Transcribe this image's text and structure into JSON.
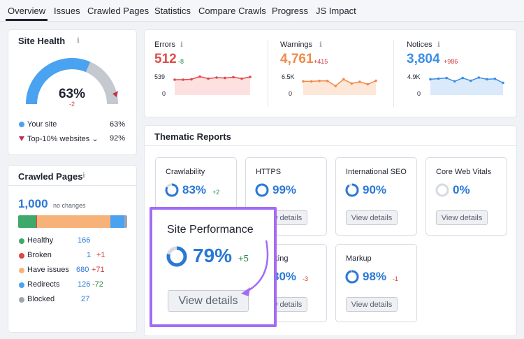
{
  "tabs": [
    "Overview",
    "Issues",
    "Crawled Pages",
    "Statistics",
    "Compare Crawls",
    "Progress",
    "JS Impact"
  ],
  "site_health": {
    "title": "Site Health",
    "percent": 63,
    "percent_label": "63%",
    "delta": "-2",
    "legend": [
      {
        "label": "Your site",
        "value": "63%",
        "color": "#4aa3f0"
      },
      {
        "label": "Top-10% websites",
        "value": "92%",
        "color": "#c0334d"
      }
    ],
    "colors": {
      "primary": "#4aa3f0",
      "secondary": "#c4c8cf"
    }
  },
  "crawled_pages": {
    "title": "Crawled Pages",
    "total": "1,000",
    "total_note": "no changes",
    "bar_fractions": [
      0.166,
      0.001,
      0.68,
      0.126,
      0.027
    ],
    "rows": [
      {
        "label": "Healthy",
        "value": "166",
        "delta": "",
        "color": "#3ea96a"
      },
      {
        "label": "Broken",
        "value": "1",
        "delta": "+1",
        "color": "#e04545"
      },
      {
        "label": "Have issues",
        "value": "680",
        "delta": "+71",
        "color": "#f7b27a"
      },
      {
        "label": "Redirects",
        "value": "126",
        "delta": "-72",
        "color": "#4aa3f0"
      },
      {
        "label": "Blocked",
        "value": "27",
        "delta": "",
        "color": "#a0a6b1"
      }
    ]
  },
  "metrics": [
    {
      "label": "Errors",
      "value": "512",
      "delta": "-8",
      "ymax": "539",
      "ymin": "0",
      "color": "#e04c4c",
      "fill": "#fde0e0",
      "series": [
        0.8,
        0.8,
        0.82,
        0.95,
        0.85,
        0.9,
        0.88,
        0.92,
        0.85,
        0.93
      ]
    },
    {
      "label": "Warnings",
      "value": "4,761",
      "delta": "+415",
      "ymax": "6.5K",
      "ymin": "0",
      "color": "#f08a4b",
      "fill": "#fde7d8",
      "series": [
        0.72,
        0.72,
        0.74,
        0.74,
        0.5,
        0.82,
        0.62,
        0.7,
        0.58,
        0.75
      ]
    },
    {
      "label": "Notices",
      "value": "3,804",
      "delta": "+986",
      "ymax": "4.9K",
      "ymin": "0",
      "color": "#3b8ee6",
      "fill": "#dbeafb",
      "series": [
        0.82,
        0.85,
        0.88,
        0.72,
        0.88,
        0.75,
        0.9,
        0.82,
        0.84,
        0.65
      ]
    }
  ],
  "thematic": {
    "title": "Thematic Reports",
    "button_label": "View details",
    "cards": [
      {
        "title": "Crawlability",
        "pct": "83%",
        "delta": "+2",
        "value": 0.83
      },
      {
        "title": "HTTPS",
        "pct": "99%",
        "delta": "",
        "value": 0.99
      },
      {
        "title": "International SEO",
        "pct": "90%",
        "delta": "",
        "value": 0.9
      },
      {
        "title": "Core Web Vitals",
        "pct": "0%",
        "delta": "",
        "value": 0.0
      },
      {
        "title": "al Linking",
        "pct": "80%",
        "delta": "-3",
        "value": 0.8
      },
      {
        "title": "Markup",
        "pct": "98%",
        "delta": "-1",
        "value": 0.98
      }
    ]
  },
  "site_performance": {
    "title": "Site Performance",
    "pct": "79%",
    "delta": "+5",
    "value": 0.79,
    "button_label": "View details",
    "highlight_color": "#a26cf5"
  }
}
